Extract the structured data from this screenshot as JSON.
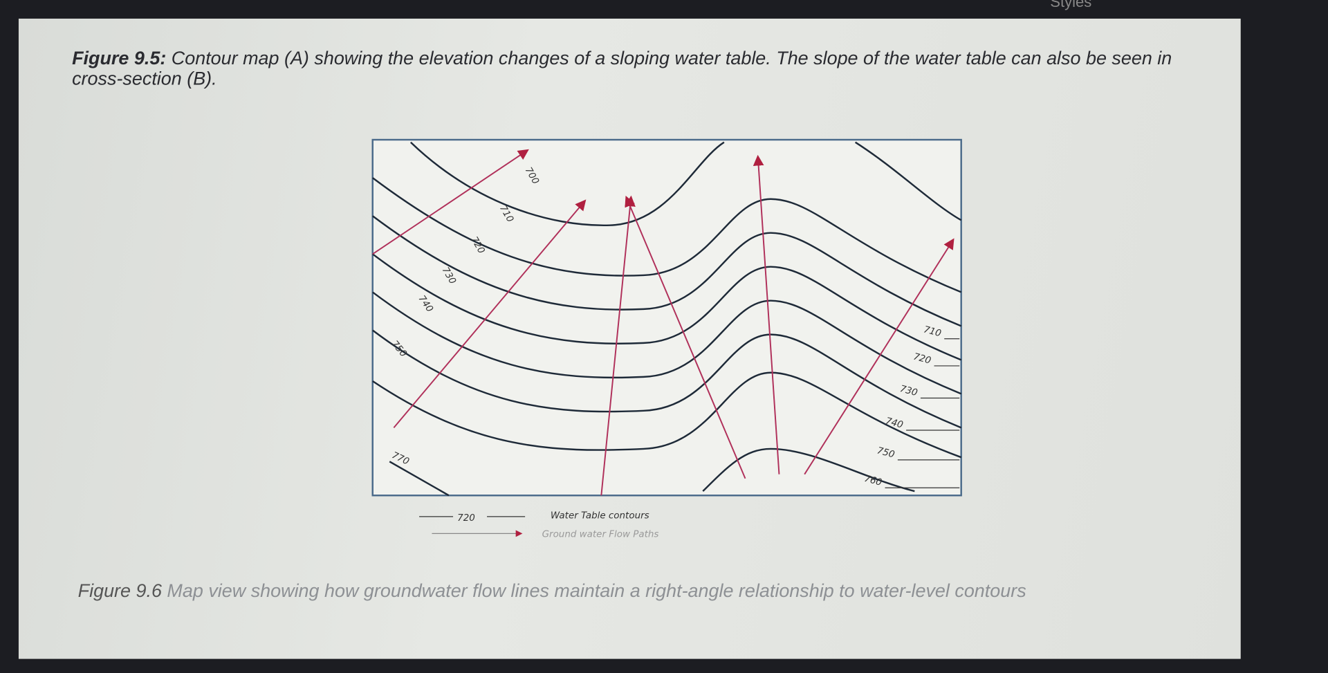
{
  "header": {
    "tab": "Styles"
  },
  "figure_9_5": {
    "label": "Figure 9.5:",
    "caption": "Contour map (A) showing the elevation changes of a sloping water table. The slope of the water table can also be seen in cross-section (B)."
  },
  "map": {
    "left_labels": [
      "700",
      "710",
      "720",
      "730",
      "740",
      "750",
      "770"
    ],
    "right_labels": [
      "710",
      "720",
      "730",
      "740",
      "750",
      "760"
    ],
    "legend": [
      {
        "symbol": "720",
        "text": "Water Table contours"
      },
      {
        "text": "Ground water Flow Paths"
      }
    ]
  },
  "figure_9_6": {
    "label": "Figure 9.6",
    "caption": "Map view showing how groundwater flow lines maintain a right-angle relationship to water-level contours"
  }
}
